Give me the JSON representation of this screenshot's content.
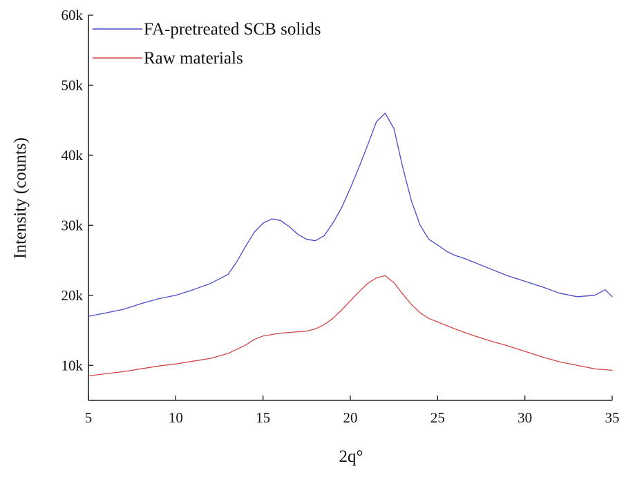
{
  "chart_data": {
    "type": "line",
    "title": "",
    "xlabel": "2q°",
    "ylabel": "Intensity (counts)",
    "xlim": [
      5,
      35
    ],
    "ylim": [
      5000,
      60000
    ],
    "xticks": [
      5,
      10,
      15,
      20,
      25,
      30,
      35
    ],
    "xtick_labels": [
      "5",
      "10",
      "15",
      "20",
      "25",
      "30",
      "35"
    ],
    "yticks": [
      10000,
      20000,
      30000,
      40000,
      50000,
      60000
    ],
    "ytick_labels": [
      "10k",
      "20k",
      "30k",
      "40k",
      "50k",
      "60k"
    ],
    "grid": false,
    "legend_position": "top-left",
    "series": [
      {
        "name": "FA-pretreated SCB solids",
        "color": "#4a4ac8",
        "x": [
          5,
          6,
          7,
          8,
          9,
          10,
          11,
          12,
          13,
          13.5,
          14,
          14.5,
          15,
          15.5,
          16,
          16.5,
          17,
          17.5,
          18,
          18.5,
          19,
          19.5,
          20,
          20.5,
          21,
          21.5,
          22,
          22.5,
          23,
          23.5,
          24,
          24.5,
          25,
          25.5,
          26,
          26.5,
          27,
          28,
          29,
          30,
          31,
          32,
          33,
          34,
          34.6,
          35
        ],
        "y": [
          17000,
          17500,
          18000,
          18800,
          19500,
          20000,
          20800,
          21700,
          23000,
          24800,
          27000,
          29000,
          30300,
          30900,
          30700,
          29800,
          28700,
          28000,
          27800,
          28500,
          30300,
          32500,
          35300,
          38300,
          41500,
          44800,
          46000,
          43800,
          38300,
          33500,
          30000,
          28000,
          27200,
          26300,
          25700,
          25300,
          24800,
          23800,
          22800,
          22000,
          21200,
          20300,
          19800,
          20000,
          20800,
          19800
        ]
      },
      {
        "name": "Raw materials",
        "color": "#d24646",
        "x": [
          5,
          6,
          7,
          8,
          9,
          10,
          11,
          12,
          13,
          13.5,
          14,
          14.5,
          15,
          15.5,
          16,
          16.5,
          17,
          17.5,
          18,
          18.5,
          19,
          19.5,
          20,
          20.5,
          21,
          21.5,
          22,
          22.5,
          23,
          23.5,
          24,
          24.5,
          25,
          26,
          27,
          28,
          29,
          30,
          31,
          32,
          33,
          34,
          35
        ],
        "y": [
          8500,
          8800,
          9100,
          9500,
          9900,
          10200,
          10600,
          11000,
          11700,
          12300,
          12900,
          13700,
          14200,
          14400,
          14600,
          14700,
          14800,
          14900,
          15200,
          15800,
          16700,
          17900,
          19200,
          20500,
          21700,
          22500,
          22800,
          21800,
          20200,
          18700,
          17500,
          16700,
          16200,
          15200,
          14300,
          13500,
          12800,
          12000,
          11200,
          10500,
          10000,
          9500,
          9300
        ]
      }
    ]
  }
}
